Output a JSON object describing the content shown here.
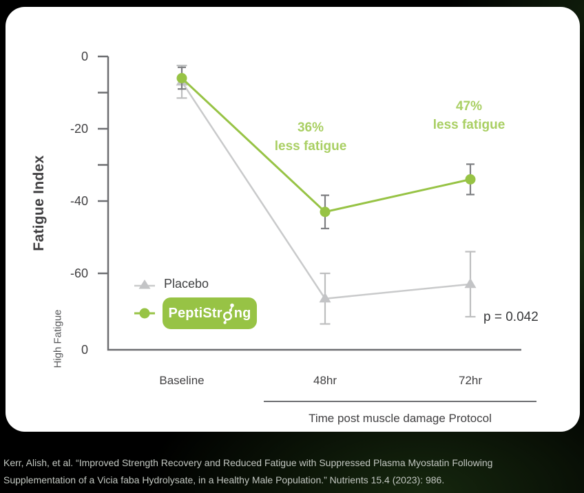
{
  "colors": {
    "page_bg": "#000000",
    "card_bg": "#ffffff",
    "axis": "#6d6e71",
    "tick_label": "#414042",
    "brand_green": "#97c345",
    "annotation_green": "#a9cf63",
    "placebo_gray": "#c9cacb"
  },
  "chart_data": {
    "type": "line",
    "title": "",
    "ylabel": "Fatigue Index",
    "y_secondary_label": "High Fatigue",
    "xlabel": "Time post muscle damage Protocol",
    "categories": [
      "Baseline",
      "48hr",
      "72hr"
    ],
    "y_ticks_major": [
      0,
      -20,
      -40,
      -60
    ],
    "y_ticks_minor": [
      -10,
      -30
    ],
    "y_origin_label": "0",
    "ylim": [
      -81,
      0
    ],
    "grid": false,
    "legend_position": "inside-bottom-left",
    "series": [
      {
        "name": "Placebo",
        "marker": "triangle",
        "color": "#c9cacb",
        "marker_color": "#c3c4c6",
        "error_color": "#bdbebf",
        "values": [
          -7,
          -67,
          -63
        ],
        "errors": [
          4.5,
          7,
          9
        ]
      },
      {
        "name": "PeptiStrong",
        "marker": "circle",
        "color": "#97c345",
        "marker_color": "#97c345",
        "error_color": "#7d7e81",
        "values": [
          -6,
          -43,
          -34
        ],
        "errors": [
          3,
          4.6,
          4.2
        ]
      }
    ],
    "annotations": [
      {
        "lines": [
          "36%",
          "less fatigue"
        ],
        "color": "#a9cf63"
      },
      {
        "lines": [
          "47%",
          "less fatigue"
        ],
        "color": "#a9cf63"
      },
      {
        "text": "p = 0.042",
        "color": "#37383a"
      }
    ]
  },
  "legend": {
    "placebo_label": "Placebo",
    "brand_badge": {
      "pre": "PeptiStr",
      "post": "ng"
    }
  },
  "citation": {
    "line1": "Kerr, Alish, et al. “Improved Strength Recovery and Reduced Fatigue with Suppressed Plasma Myostatin Following",
    "line2": "Supplementation of a Vicia faba Hydrolysate, in a Healthy Male Population.” Nutrients 15.4 (2023): 986."
  }
}
